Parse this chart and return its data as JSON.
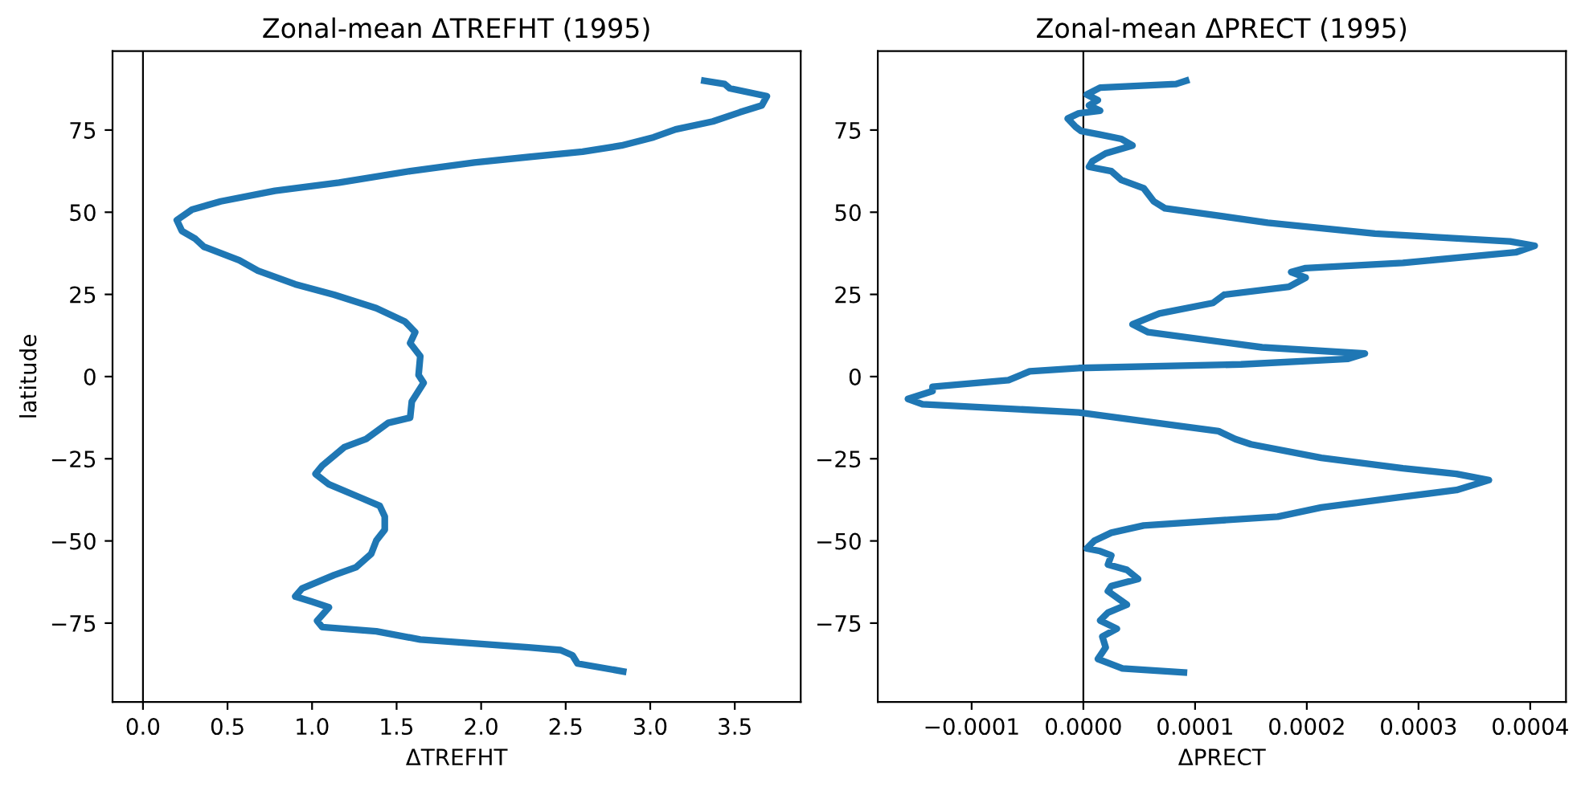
{
  "chart_data": [
    {
      "type": "line",
      "title": "Zonal-mean ΔTREFHT (1995)",
      "xlabel": "ΔTREFHT",
      "ylabel": "latitude",
      "xlim": [
        -0.18,
        3.89
      ],
      "ylim": [
        -99,
        99
      ],
      "xticks": [
        {
          "value": 0,
          "label": "0.0"
        },
        0.5,
        {
          "value": 1,
          "label": "1.0"
        },
        1.5,
        {
          "value": 2,
          "label": "2.0"
        },
        2.5,
        {
          "value": 3,
          "label": "3.0"
        },
        3.5
      ],
      "yticks": [
        {
          "value": -75,
          "label": "−75"
        },
        {
          "value": -50,
          "label": "−50"
        },
        {
          "value": -25,
          "label": "−25"
        },
        0,
        25,
        50,
        75
      ],
      "ref_lines": [
        {
          "axis": "x",
          "value": 0,
          "color": "#000000"
        }
      ],
      "series": [
        {
          "color": "#1f77b4",
          "x": [
            3.32,
            3.44,
            3.47,
            3.69,
            3.66,
            3.53,
            3.37,
            3.15,
            3.02,
            2.83,
            2.6,
            2.28,
            1.96,
            1.58,
            1.16,
            0.78,
            0.46,
            0.29,
            0.2,
            0.23,
            0.31,
            0.36,
            0.57,
            0.68,
            0.9,
            1.13,
            1.38,
            1.55,
            1.61,
            1.58,
            1.64,
            1.63,
            1.66,
            1.59,
            1.58,
            1.45,
            1.32,
            1.19,
            1.06,
            1.02,
            1.1,
            1.29,
            1.4,
            1.43,
            1.43,
            1.38,
            1.35,
            1.26,
            1.13,
            0.94,
            0.9,
            1.0,
            1.1,
            1.03,
            1.06,
            1.38,
            1.64,
            2.28,
            2.47,
            2.54,
            2.57,
            2.84
          ],
          "values": [
            90,
            89,
            87.7,
            85.3,
            82.5,
            80.4,
            77.6,
            75.2,
            72.8,
            70.3,
            68.4,
            66.8,
            65.1,
            62.5,
            59,
            56.5,
            53.3,
            50.8,
            47.6,
            44.3,
            41.9,
            39.5,
            35.4,
            32.2,
            28.1,
            24.9,
            20.8,
            16.7,
            13.5,
            10.2,
            6.2,
            0.5,
            -1.9,
            -7.6,
            -12.5,
            -14.1,
            -19,
            -21.5,
            -27.1,
            -29.6,
            -32.8,
            -36.9,
            -39.3,
            -42.6,
            -46.6,
            -49.9,
            -53.9,
            -58,
            -60.4,
            -64.5,
            -66.9,
            -68.5,
            -70.2,
            -74.3,
            -76.2,
            -77.5,
            -80,
            -82.4,
            -83.2,
            -84.8,
            -87.3,
            -89.7
          ]
        }
      ]
    },
    {
      "type": "line",
      "title": "Zonal-mean ΔPRECT (1995)",
      "xlabel": "ΔPRECT",
      "xlim": [
        -0.000184,
        0.000432
      ],
      "ylim": [
        -99,
        99
      ],
      "xticks": [
        {
          "value": -0.0001,
          "label": "−0.0001"
        },
        {
          "value": 0,
          "label": "0.0000"
        },
        {
          "value": 0.0001,
          "label": "0.0001"
        },
        {
          "value": 0.0002,
          "label": "0.0002"
        },
        {
          "value": 0.0003,
          "label": "0.0003"
        },
        {
          "value": 0.0004,
          "label": "0.0004"
        }
      ],
      "yticks": [
        {
          "value": -75,
          "label": "−75"
        },
        {
          "value": -50,
          "label": "−50"
        },
        {
          "value": -25,
          "label": "−25"
        },
        0,
        25,
        50,
        75
      ],
      "ref_lines": [
        {
          "axis": "x",
          "value": 0,
          "color": "#000000"
        }
      ],
      "series": [
        {
          "color": "#1f77b4",
          "x": [
            9.2e-05,
            8.3e-05,
            1.5e-05,
            3e-06,
            1.3e-05,
            5e-06,
            1.5e-05,
            -4e-06,
            -1.4e-05,
            -7e-06,
            -2e-06,
            1.5e-05,
            3.4e-05,
            4.4e-05,
            2e-05,
            8e-06,
            5e-06,
            2.5e-05,
            3.4e-05,
            5.4e-05,
            6.3e-05,
            7.3e-05,
            0.000116,
            0.000165,
            0.000261,
            0.000382,
            0.000404,
            0.000387,
            0.000286,
            0.000199,
            0.000186,
            0.000199,
            0.000184,
            0.000126,
            0.000116,
            6.8e-05,
            4.4e-05,
            5.8e-05,
            0.000131,
            0.00016,
            0.000252,
            0.000237,
            0.000141,
            -4e-06,
            -4.8e-05,
            -6.7e-05,
            -0.000135,
            -0.000135,
            -0.000157,
            -0.000144,
            -4e-06,
            8.3e-05,
            0.000121,
            0.000136,
            0.00015,
            0.000213,
            0.000286,
            0.000334,
            0.000363,
            0.000334,
            0.000286,
            0.000213,
            0.000174,
            5.4e-05,
            2.5e-05,
            1e-05,
            3e-06,
            1.5e-05,
            2.5e-05,
            2.2e-05,
            3.9e-05,
            4.9e-05,
            2.5e-05,
            2.2e-05,
            3.9e-05,
            2.2e-05,
            1.5e-05,
            3e-05,
            1.7e-05,
            2e-05,
            1.3e-05,
            3.5e-05,
            9e-05
          ],
          "values": [
            90,
            89,
            87.9,
            85.8,
            84.1,
            82.5,
            80.9,
            80.1,
            78.5,
            76,
            74.7,
            73.6,
            72.3,
            70.3,
            67.9,
            65.5,
            63.8,
            62.5,
            59.8,
            57.3,
            53.3,
            51.2,
            49.2,
            46.8,
            43.5,
            41.1,
            39.8,
            37.8,
            34.6,
            33,
            31.8,
            30.1,
            27.3,
            24.9,
            22.4,
            19.2,
            15.9,
            13.5,
            10.2,
            8.9,
            7,
            5.4,
            3.7,
            2.6,
            1.6,
            -1.1,
            -3.1,
            -4.4,
            -6.8,
            -8.4,
            -10.9,
            -14.9,
            -16.6,
            -19,
            -20.6,
            -24.7,
            -27.9,
            -29.6,
            -31.5,
            -34.5,
            -36.6,
            -39.8,
            -42.6,
            -45.3,
            -47.5,
            -49.9,
            -52.3,
            -53.1,
            -54.4,
            -57.2,
            -58.8,
            -61.6,
            -63.7,
            -65.3,
            -69.4,
            -71.8,
            -74.2,
            -76.7,
            -79.1,
            -82.4,
            -85.9,
            -88.8,
            -90
          ]
        }
      ]
    }
  ]
}
